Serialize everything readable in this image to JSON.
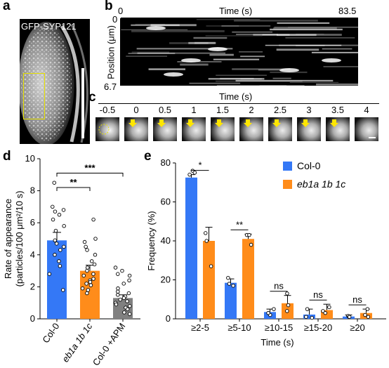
{
  "panels": {
    "a": {
      "label": "a",
      "title": "GFP-SYP121"
    },
    "b": {
      "label": "b",
      "time_start": "0",
      "time_end": "83.5",
      "time_label": "Time (s)",
      "pos_top": "0",
      "pos_bottom": "6.7",
      "ylabel": "Position (μm)"
    },
    "c": {
      "label": "c",
      "time_label": "Time (s)",
      "frames": [
        "-0.5",
        "0",
        "0.5",
        "1",
        "1.5",
        "2",
        "2.5",
        "3",
        "3.5",
        "4"
      ]
    },
    "d": {
      "label": "d"
    },
    "e": {
      "label": "e"
    }
  },
  "chart_data": [
    {
      "id": "d",
      "type": "bar",
      "categories": [
        "Col-0",
        "eb1a 1b 1c",
        "Col-0 +APM"
      ],
      "values": [
        4.9,
        3.0,
        1.3
      ],
      "errors": [
        0.5,
        0.35,
        0.2
      ],
      "colors": [
        "#3478F6",
        "#FF8C1A",
        "#808080"
      ],
      "points": [
        [
          8.5,
          7.0,
          6.8,
          6.7,
          6.5,
          6.2,
          5.8,
          5.5,
          4.9,
          4.7,
          4.5,
          4.3,
          4.0,
          3.6,
          3.3,
          2.8,
          1.8
        ],
        [
          6.2,
          5.0,
          4.8,
          4.5,
          4.3,
          4.0,
          3.6,
          3.4,
          3.2,
          3.0,
          2.8,
          2.7,
          2.5,
          2.4,
          2.3,
          2.2,
          2.1,
          1.9,
          1.8,
          1.6
        ],
        [
          3.2,
          3.0,
          2.8,
          2.7,
          2.4,
          2.2,
          1.9,
          1.7,
          1.6,
          1.5,
          1.4,
          1.3,
          1.2,
          1.1,
          1.0,
          0.9,
          0.8,
          0.7,
          0.6,
          0.4,
          0.3
        ]
      ],
      "ylabel_line1": "Rate of appearance",
      "ylabel_line2": "(particles/100 μm²/10 s)",
      "ylim": [
        0,
        10
      ],
      "yticks": [
        "0",
        "2",
        "4",
        "6",
        "8",
        "10"
      ],
      "annotations": [
        {
          "from": 0,
          "to": 1,
          "text": "**",
          "level": 8.2
        },
        {
          "from": 0,
          "to": 2,
          "text": "***",
          "level": 9.1
        }
      ]
    },
    {
      "id": "e",
      "type": "bar",
      "categories": [
        "≥2-5",
        "≥5-10",
        "≥10-15",
        "≥15-20",
        "≥20"
      ],
      "xlabel": "Time (s)",
      "ylabel": "Frequency (%)",
      "ylim": [
        0,
        80
      ],
      "yticks": [
        "0",
        "20",
        "40",
        "60",
        "80"
      ],
      "series": [
        {
          "name": "Col-0",
          "color": "#3478F6",
          "values": [
            72.5,
            18.5,
            3.5,
            2.2,
            1.2
          ],
          "errors": [
            1.5,
            2.0,
            1.5,
            2.8,
            0.8
          ],
          "points": [
            [
              76,
              75,
              74
            ],
            [
              21,
              18,
              17
            ],
            [
              5,
              2,
              3
            ],
            [
              5,
              0.5,
              1
            ],
            [
              1.5,
              1,
              1
            ]
          ]
        },
        {
          "name": "eb1a 1b 1c",
          "color": "#FF8C1A",
          "values": [
            40.0,
            41.0,
            8.0,
            4.5,
            3.0
          ],
          "errors": [
            7.0,
            2.5,
            4.0,
            3.0,
            2.0
          ],
          "points": [
            [
              44,
              40,
              27
            ],
            [
              43,
              43,
              38
            ],
            [
              13,
              4,
              7
            ],
            [
              6,
              4,
              3
            ],
            [
              5,
              1,
              2
            ]
          ]
        }
      ],
      "significance": [
        "*",
        "**",
        "ns",
        "ns",
        "ns"
      ]
    }
  ]
}
